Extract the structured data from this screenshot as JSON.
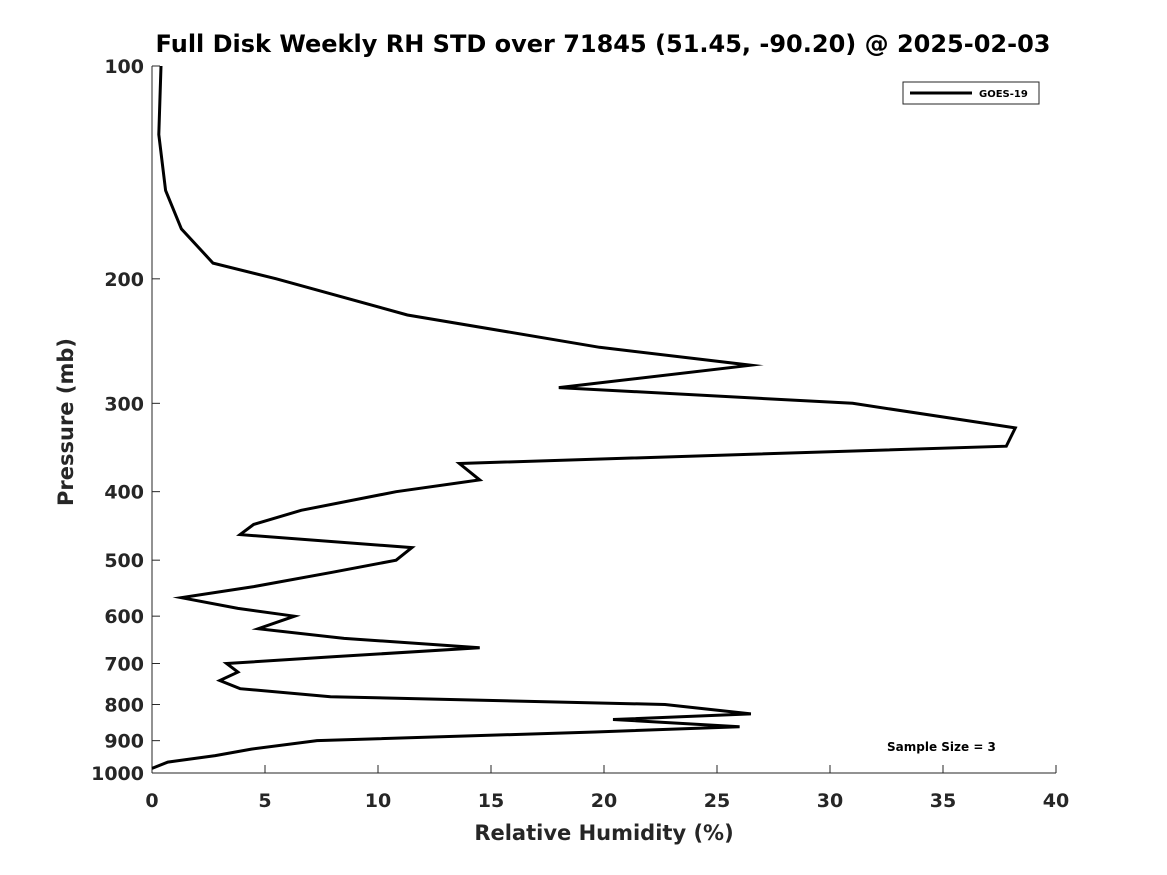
{
  "chart_data": {
    "type": "line",
    "title": "Full Disk Weekly RH STD over 71845 (51.45, -90.20) @ 2025-02-03",
    "xlabel": "Relative Humidity (%)",
    "ylabel": "Pressure (mb)",
    "xlim": [
      0,
      40
    ],
    "ylim": [
      100,
      1000
    ],
    "yscale": "log",
    "y_reversed": true,
    "xticks": [
      0,
      5,
      10,
      15,
      20,
      25,
      30,
      35,
      40
    ],
    "yticks": [
      100,
      200,
      300,
      400,
      500,
      600,
      700,
      800,
      900,
      1000
    ],
    "legend": {
      "position": "top-right",
      "entries": [
        "GOES-19"
      ]
    },
    "annotation": "Sample Size = 3",
    "series": [
      {
        "name": "GOES-19",
        "color": "#000000",
        "points": [
          [
            0.4,
            100
          ],
          [
            0.3,
            125
          ],
          [
            0.6,
            150
          ],
          [
            1.3,
            170
          ],
          [
            2.7,
            190
          ],
          [
            5.5,
            200
          ],
          [
            11.3,
            225
          ],
          [
            19.8,
            250
          ],
          [
            26.5,
            265
          ],
          [
            18.0,
            285
          ],
          [
            31.0,
            300
          ],
          [
            38.2,
            325
          ],
          [
            37.8,
            345
          ],
          [
            13.6,
            365
          ],
          [
            14.5,
            385
          ],
          [
            10.8,
            400
          ],
          [
            6.6,
            425
          ],
          [
            4.5,
            445
          ],
          [
            3.9,
            460
          ],
          [
            11.5,
            480
          ],
          [
            10.8,
            500
          ],
          [
            8.0,
            520
          ],
          [
            4.5,
            545
          ],
          [
            1.3,
            565
          ],
          [
            3.8,
            585
          ],
          [
            6.3,
            600
          ],
          [
            4.7,
            625
          ],
          [
            8.5,
            645
          ],
          [
            14.5,
            665
          ],
          [
            8.0,
            685
          ],
          [
            3.3,
            700
          ],
          [
            3.8,
            720
          ],
          [
            3.0,
            740
          ],
          [
            3.9,
            760
          ],
          [
            7.9,
            780
          ],
          [
            22.7,
            800
          ],
          [
            26.5,
            825
          ],
          [
            20.4,
            840
          ],
          [
            26.0,
            860
          ],
          [
            19.6,
            875
          ],
          [
            7.3,
            900
          ],
          [
            4.4,
            925
          ],
          [
            2.8,
            945
          ],
          [
            0.7,
            965
          ],
          [
            0.0,
            985
          ]
        ]
      }
    ]
  }
}
